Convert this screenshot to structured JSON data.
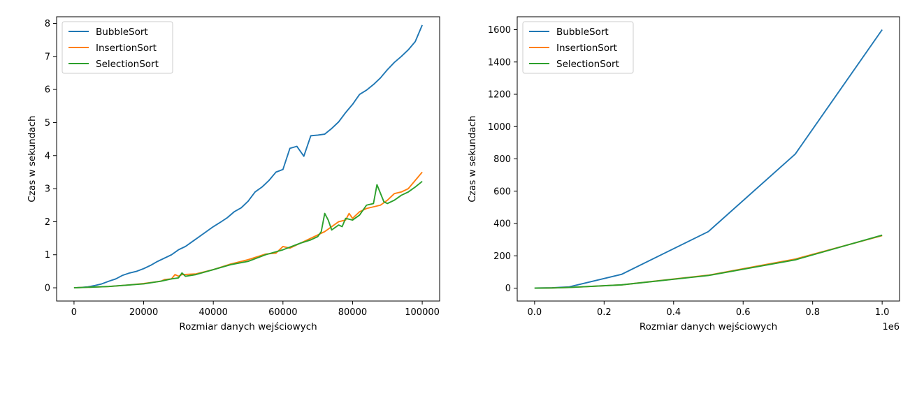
{
  "colors": {
    "BubbleSort": "#1f77b4",
    "InsertionSort": "#ff7f0e",
    "SelectionSort": "#2ca02c"
  },
  "chart_data": [
    {
      "type": "line",
      "xlabel": "Rozmiar danych wejściowych",
      "ylabel": "Czas w sekundach",
      "xlim": [
        -5000,
        105000
      ],
      "ylim": [
        -0.4,
        8.2
      ],
      "xticks": [
        0,
        20000,
        40000,
        60000,
        80000,
        100000
      ],
      "xtick_labels": [
        "0",
        "20000",
        "40000",
        "60000",
        "80000",
        "100000"
      ],
      "yticks": [
        0,
        1,
        2,
        3,
        4,
        5,
        6,
        7,
        8
      ],
      "ytick_labels": [
        "0",
        "1",
        "2",
        "3",
        "4",
        "5",
        "6",
        "7",
        "8"
      ],
      "x_offset_label": "",
      "legend": "top-left",
      "grid": false,
      "series": [
        {
          "name": "BubbleSort",
          "x": [
            0,
            2000,
            4000,
            6000,
            8000,
            10000,
            12000,
            14000,
            16000,
            18000,
            20000,
            22000,
            24000,
            26000,
            28000,
            30000,
            32000,
            34000,
            36000,
            38000,
            40000,
            42000,
            44000,
            46000,
            48000,
            50000,
            52000,
            54000,
            56000,
            58000,
            60000,
            62000,
            64000,
            66000,
            68000,
            70000,
            72000,
            74000,
            76000,
            78000,
            80000,
            82000,
            84000,
            86000,
            88000,
            90000,
            92000,
            94000,
            96000,
            98000,
            100000
          ],
          "y": [
            0,
            0.01,
            0.03,
            0.07,
            0.12,
            0.2,
            0.27,
            0.38,
            0.45,
            0.5,
            0.58,
            0.68,
            0.8,
            0.9,
            1.0,
            1.15,
            1.25,
            1.4,
            1.55,
            1.7,
            1.85,
            1.98,
            2.12,
            2.3,
            2.42,
            2.62,
            2.9,
            3.05,
            3.25,
            3.5,
            3.58,
            4.22,
            4.28,
            3.98,
            4.6,
            4.62,
            4.65,
            4.82,
            5.02,
            5.3,
            5.55,
            5.85,
            5.98,
            6.15,
            6.35,
            6.6,
            6.82,
            7.0,
            7.2,
            7.45,
            7.95
          ]
        },
        {
          "name": "InsertionSort",
          "x": [
            0,
            5000,
            10000,
            15000,
            20000,
            25000,
            26000,
            28000,
            29000,
            30000,
            31000,
            35000,
            40000,
            45000,
            50000,
            55000,
            58000,
            60000,
            62000,
            65000,
            68000,
            70000,
            72000,
            74000,
            76000,
            78000,
            79000,
            80000,
            82000,
            84000,
            86000,
            88000,
            90000,
            92000,
            94000,
            96000,
            98000,
            100000
          ],
          "y": [
            0,
            0.02,
            0.04,
            0.08,
            0.13,
            0.2,
            0.25,
            0.27,
            0.4,
            0.35,
            0.4,
            0.42,
            0.55,
            0.72,
            0.85,
            1.02,
            1.05,
            1.25,
            1.2,
            1.35,
            1.5,
            1.6,
            1.7,
            1.85,
            2.0,
            2.05,
            2.25,
            2.1,
            2.3,
            2.4,
            2.45,
            2.5,
            2.65,
            2.85,
            2.9,
            3.0,
            3.25,
            3.5
          ]
        },
        {
          "name": "SelectionSort",
          "x": [
            0,
            5000,
            10000,
            15000,
            20000,
            25000,
            28000,
            30000,
            31000,
            32000,
            35000,
            40000,
            45000,
            50000,
            55000,
            60000,
            65000,
            68000,
            70000,
            71000,
            72000,
            73000,
            74000,
            76000,
            77000,
            78000,
            80000,
            82000,
            84000,
            86000,
            87000,
            89000,
            90000,
            92000,
            94000,
            96000,
            98000,
            100000
          ],
          "y": [
            0,
            0.02,
            0.04,
            0.08,
            0.12,
            0.2,
            0.27,
            0.3,
            0.45,
            0.35,
            0.4,
            0.55,
            0.7,
            0.8,
            1.0,
            1.15,
            1.35,
            1.45,
            1.55,
            1.7,
            2.25,
            2.05,
            1.75,
            1.9,
            1.85,
            2.1,
            2.05,
            2.2,
            2.5,
            2.55,
            3.12,
            2.6,
            2.55,
            2.65,
            2.8,
            2.9,
            3.05,
            3.22
          ]
        }
      ]
    },
    {
      "type": "line",
      "xlabel": "Rozmiar danych wejściowych",
      "ylabel": "Czas w sekundach",
      "xlim": [
        -0.05,
        1.05
      ],
      "ylim": [
        -80,
        1680
      ],
      "xticks": [
        0.0,
        0.2,
        0.4,
        0.6,
        0.8,
        1.0
      ],
      "xtick_labels": [
        "0.0",
        "0.2",
        "0.4",
        "0.6",
        "0.8",
        "1.0"
      ],
      "yticks": [
        0,
        200,
        400,
        600,
        800,
        1000,
        1200,
        1400,
        1600
      ],
      "ytick_labels": [
        "0",
        "200",
        "400",
        "600",
        "800",
        "1000",
        "1200",
        "1400",
        "1600"
      ],
      "x_offset_label": "1e6",
      "legend": "top-left",
      "grid": false,
      "series": [
        {
          "name": "BubbleSort",
          "x": [
            0.0,
            0.05,
            0.1,
            0.25,
            0.5,
            0.75,
            1.0
          ],
          "y": [
            0,
            2,
            8,
            85,
            350,
            830,
            1600
          ]
        },
        {
          "name": "InsertionSort",
          "x": [
            0.0,
            0.05,
            0.1,
            0.25,
            0.5,
            0.75,
            1.0
          ],
          "y": [
            0,
            1,
            4,
            20,
            80,
            180,
            325
          ]
        },
        {
          "name": "SelectionSort",
          "x": [
            0.0,
            0.05,
            0.1,
            0.25,
            0.5,
            0.75,
            1.0
          ],
          "y": [
            0,
            1,
            4,
            20,
            78,
            175,
            328
          ]
        }
      ]
    }
  ]
}
